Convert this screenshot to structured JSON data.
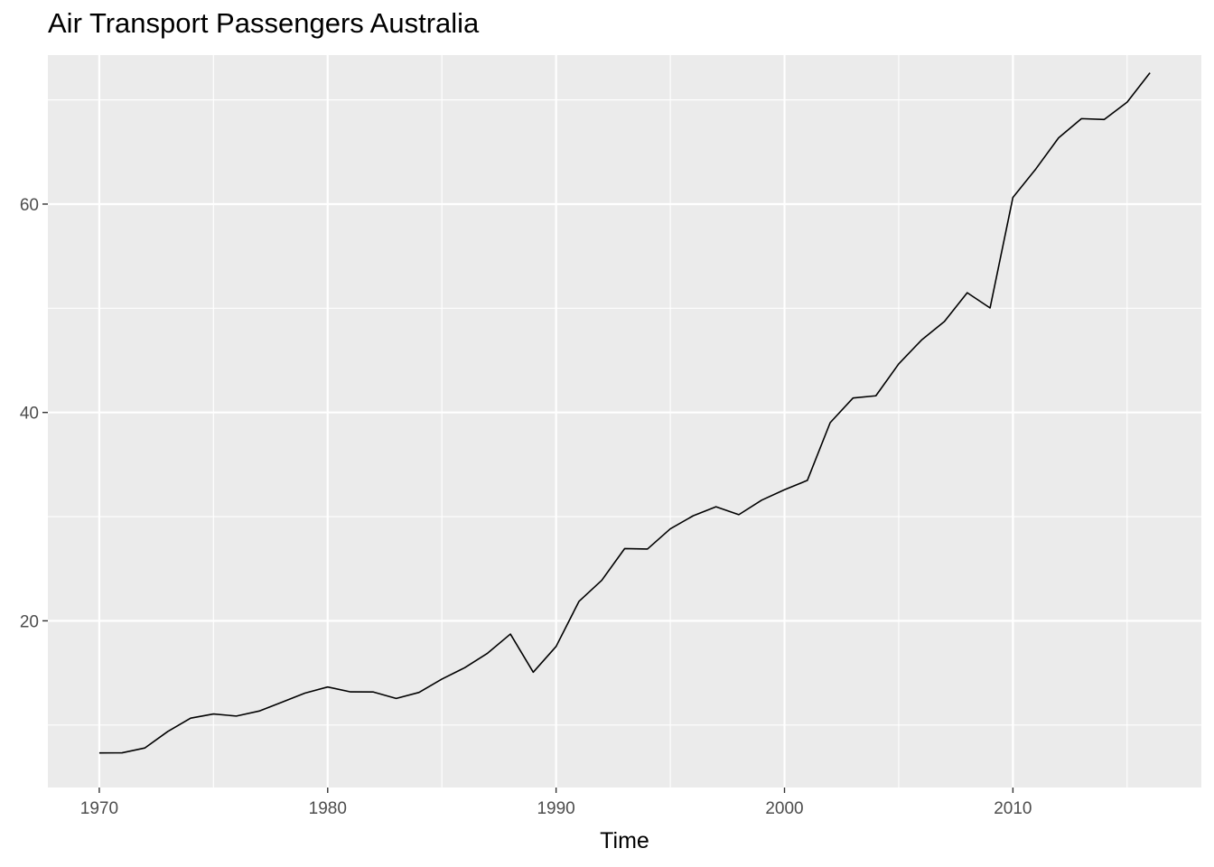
{
  "chart_data": {
    "type": "line",
    "title": "Air Transport Passengers Australia",
    "xlabel": "Time",
    "ylabel": "",
    "xlim": [
      1967.75,
      2018.25
    ],
    "ylim": [
      4.0,
      74.3
    ],
    "x_ticks": [
      1970,
      1980,
      1990,
      2000,
      2010
    ],
    "y_ticks": [
      20,
      40,
      60
    ],
    "grid": true,
    "legend": "none",
    "colors": {
      "panel": "#ebebeb",
      "grid": "#ffffff",
      "line": "#000000",
      "tick_text": "#4d4d4d",
      "tick_mark": "#333333"
    },
    "series": [
      {
        "x": [
          1970,
          1971,
          1972,
          1973,
          1974,
          1975,
          1976,
          1977,
          1978,
          1979,
          1980,
          1981,
          1982,
          1983,
          1984,
          1985,
          1986,
          1987,
          1988,
          1989,
          1990,
          1991,
          1992,
          1993,
          1994,
          1995,
          1996,
          1997,
          1998,
          1999,
          2000,
          2001,
          2002,
          2003,
          2004,
          2005,
          2006,
          2007,
          2008,
          2009,
          2010,
          2011,
          2012,
          2013,
          2014,
          2015,
          2016
        ],
        "values": [
          7.32,
          7.33,
          7.8,
          9.38,
          10.66,
          11.06,
          10.86,
          11.34,
          12.19,
          13.06,
          13.65,
          13.18,
          13.17,
          12.55,
          13.13,
          14.41,
          15.5,
          16.89,
          18.73,
          15.07,
          17.54,
          21.86,
          23.89,
          26.93,
          26.89,
          28.83,
          30.08,
          30.95,
          30.19,
          31.58,
          32.58,
          33.48,
          39.02,
          41.39,
          41.6,
          44.66,
          46.95,
          48.73,
          51.49,
          50.03,
          60.64,
          63.36,
          66.36,
          68.2,
          68.12,
          69.78,
          72.6
        ]
      }
    ]
  }
}
